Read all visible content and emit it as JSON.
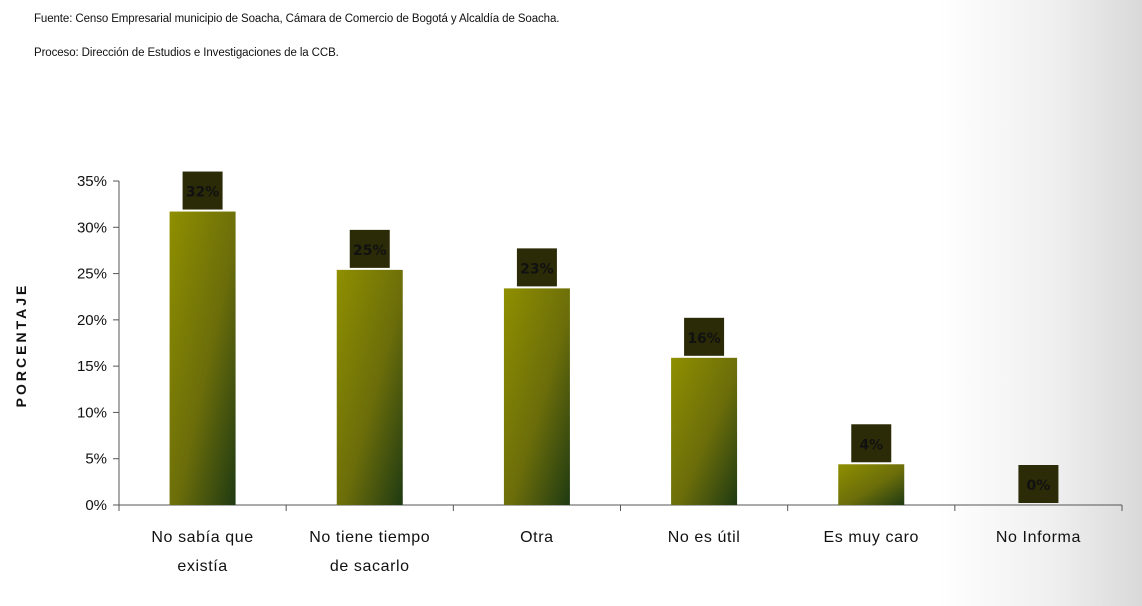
{
  "source": {
    "line1": "Fuente: Censo Empresarial municipio de Soacha, Cámara de Comercio de Bogotá y Alcaldía de Soacha.",
    "line2": "Proceso: Dirección de Estudios e Investigaciones de la CCB."
  },
  "chart_data": {
    "type": "bar",
    "ylabel": "PORCENTAJE",
    "xlabel": "",
    "title": "",
    "ylim": [
      0,
      35
    ],
    "yticks": [
      "0%",
      "5%",
      "10%",
      "15%",
      "20%",
      "25%",
      "30%",
      "35%"
    ],
    "categories": [
      [
        "No sabía que",
        "existía"
      ],
      [
        "No tiene tiempo",
        "de sacarlo"
      ],
      [
        "Otra"
      ],
      [
        "No es útil"
      ],
      [
        "Es muy caro"
      ],
      [
        "No Informa"
      ]
    ],
    "values": [
      31.7,
      25.4,
      23.4,
      15.9,
      4.4,
      0
    ],
    "data_labels": [
      "32%",
      "25%",
      "23%",
      "16%",
      "4%",
      "0%"
    ],
    "grid": false,
    "legend": "none",
    "colors": {
      "bar_light": "#8f8f00",
      "bar_mid": "#6b6d0a",
      "bar_dark": "#1f3a12",
      "label_box": "#2b2b07",
      "axis": "#555555"
    }
  }
}
